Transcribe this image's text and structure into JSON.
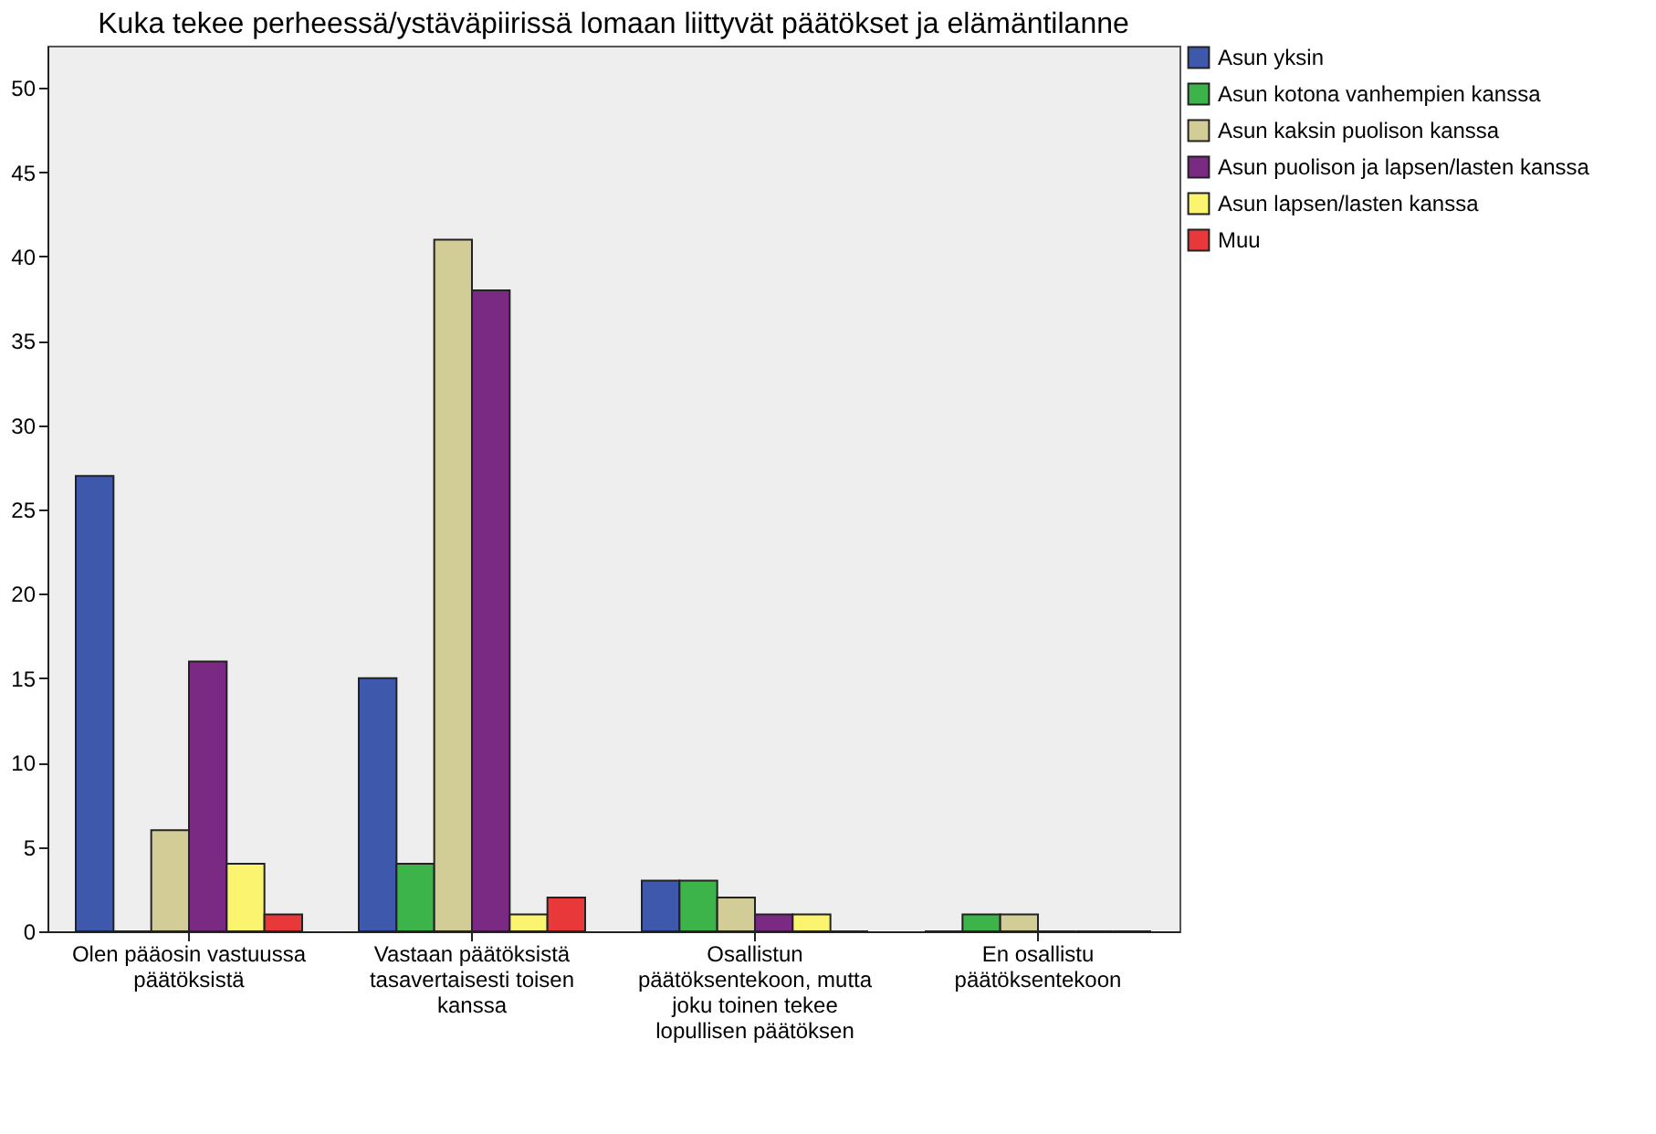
{
  "chart_data": {
    "type": "bar",
    "title": "Kuka tekee perheessä/ystäväpiirissä lomaan liittyvät päätökset ja elämäntilanne",
    "categories": [
      "Olen pääosin vastuussa päätöksistä",
      "Vastaan päätöksistä tasavertaisesti toisen kanssa",
      "Osallistun päätöksentekoon, mutta joku toinen tekee lopullisen päätöksen",
      "En osallistu päätöksentekoon"
    ],
    "series": [
      {
        "name": "Asun yksin",
        "color": "#3e58ac",
        "values": [
          27,
          15,
          3,
          0
        ]
      },
      {
        "name": "Asun kotona vanhempien kanssa",
        "color": "#3cb44a",
        "values": [
          0,
          4,
          3,
          1
        ]
      },
      {
        "name": "Asun kaksin puolison kanssa",
        "color": "#d2cc96",
        "values": [
          6,
          41,
          2,
          1
        ]
      },
      {
        "name": "Asun puolison ja lapsen/lasten kanssa",
        "color": "#7a2a82",
        "values": [
          16,
          38,
          1,
          0
        ]
      },
      {
        "name": "Asun lapsen/lasten kanssa",
        "color": "#fbf46e",
        "values": [
          4,
          1,
          1,
          0
        ]
      },
      {
        "name": "Muu",
        "color": "#e8383a",
        "values": [
          1,
          2,
          0,
          0
        ]
      }
    ],
    "ylim": [
      0,
      52.5
    ],
    "yticks": [
      0,
      5,
      10,
      15,
      20,
      25,
      30,
      35,
      40,
      45,
      50
    ],
    "grid": false,
    "legend": "top right"
  }
}
